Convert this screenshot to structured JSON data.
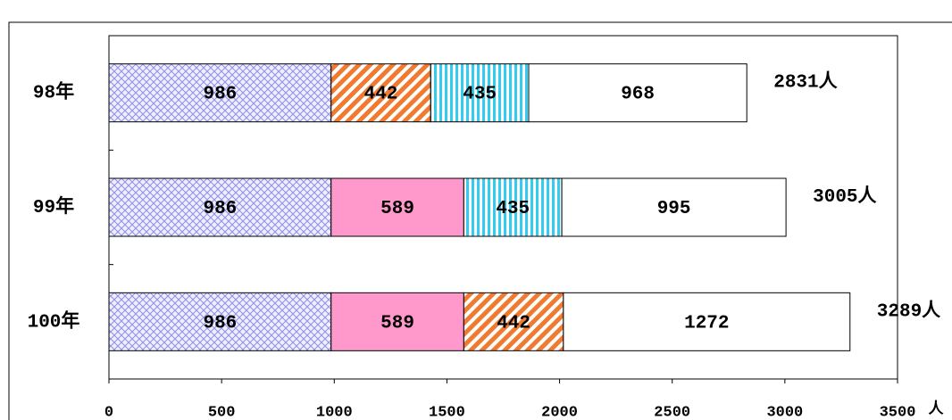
{
  "chart_data": {
    "type": "stacked-bar-horizontal",
    "categories": [
      "98年",
      "99年",
      "100年"
    ],
    "series": [
      {
        "values": [
          986,
          986,
          986
        ],
        "fills": [
          "crosshatch-blue",
          "crosshatch-blue",
          "crosshatch-blue"
        ]
      },
      {
        "values": [
          442,
          589,
          589
        ],
        "fills": [
          "diagonal-orange",
          "#ff99cc",
          "#ff99cc"
        ]
      },
      {
        "values": [
          435,
          435,
          442
        ],
        "fills": [
          "vertical-cyan",
          "vertical-cyan",
          "diagonal-orange"
        ]
      },
      {
        "values": [
          968,
          995,
          1272
        ],
        "fills": [
          "#ffffff",
          "#ffffff",
          "#ffffff"
        ]
      }
    ],
    "totals": [
      2831,
      3005,
      3289
    ],
    "total_labels": [
      "2831人",
      "3005人",
      "3289人"
    ],
    "xlim": [
      0,
      3500
    ],
    "xticks": [
      0,
      500,
      1000,
      1500,
      2000,
      2500,
      3000,
      3500
    ],
    "x_unit": "人"
  }
}
